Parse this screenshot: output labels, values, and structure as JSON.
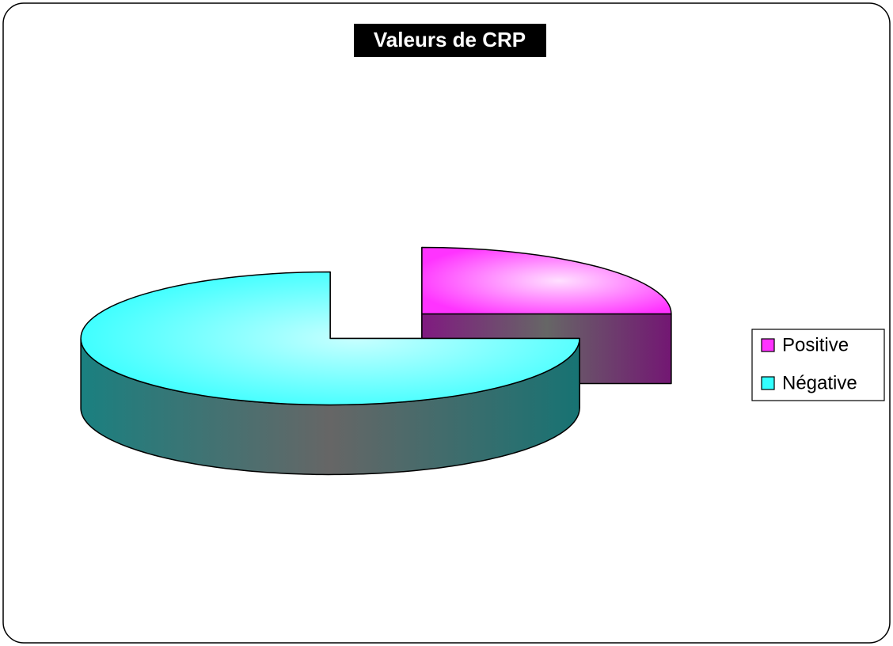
{
  "chart_data": {
    "type": "pie",
    "title": "Valeurs de CRP",
    "categories": [
      "Positive",
      "Négative"
    ],
    "values": [
      25,
      75
    ],
    "colors": [
      "#ff33ff",
      "#33ffff"
    ],
    "legend": "right"
  }
}
